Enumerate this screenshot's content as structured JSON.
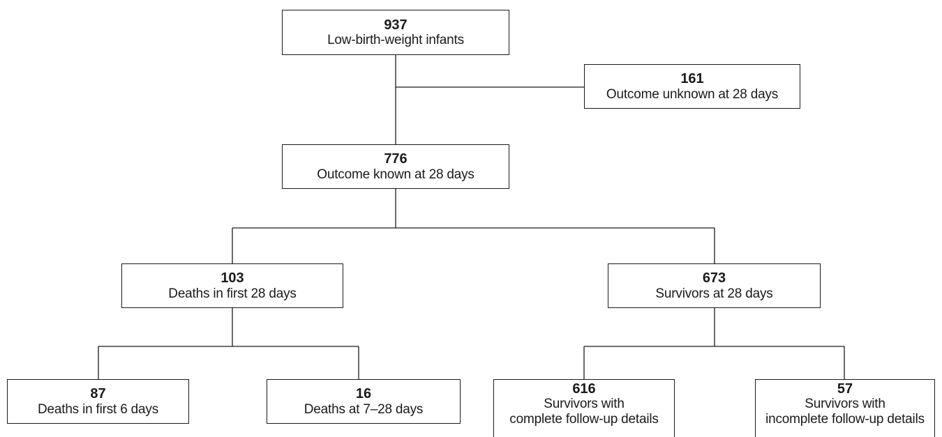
{
  "diagram": {
    "nodes": {
      "total": {
        "count": "937",
        "label": "Low-birth-weight infants"
      },
      "unknown": {
        "count": "161",
        "label": "Outcome unknown at 28 days"
      },
      "known": {
        "count": "776",
        "label": "Outcome known at 28 days"
      },
      "deaths": {
        "count": "103",
        "label": "Deaths in first 28 days"
      },
      "survivors": {
        "count": "673",
        "label": "Survivors at 28 days"
      },
      "deaths_early": {
        "count": "87",
        "label": "Deaths in first 6 days"
      },
      "deaths_late": {
        "count": "16",
        "label": "Deaths at 7–28 days"
      },
      "complete": {
        "count": "616",
        "label_line1": "Survivors with",
        "label_line2": "complete follow-up details"
      },
      "incomplete": {
        "count": "57",
        "label_line1": "Survivors with",
        "label_line2": "incomplete follow-up details"
      }
    }
  }
}
